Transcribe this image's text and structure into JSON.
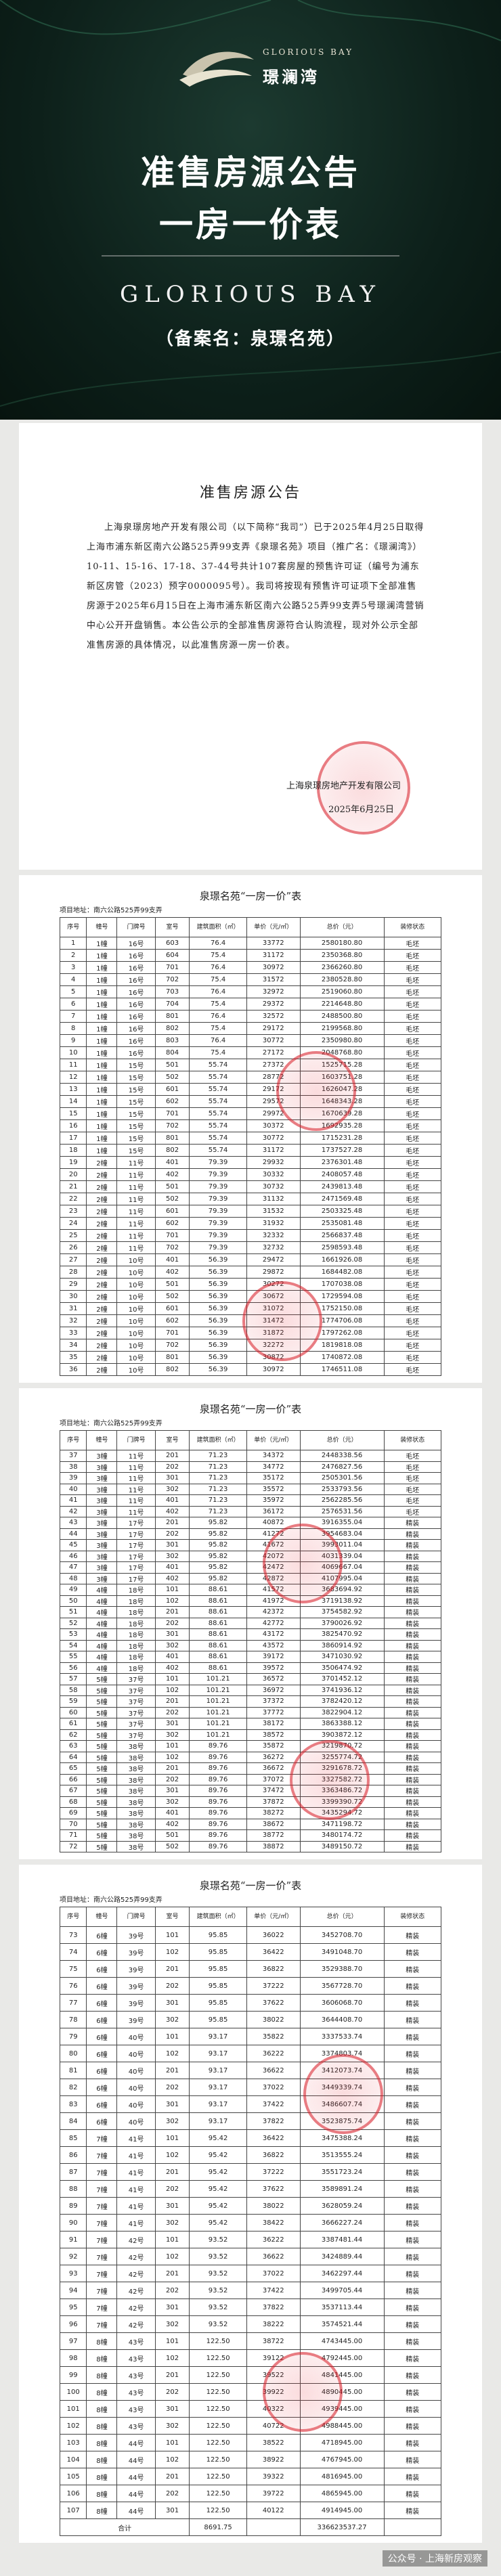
{
  "banner": {
    "logo_en": "GLORIOUS BAY",
    "logo_cn": "璟澜湾",
    "title_line1": "准售房源公告",
    "title_line2": "一房一价表",
    "brand": "GLORIOUS BAY",
    "record_name": "（备案名：泉璟名苑）"
  },
  "notice": {
    "title": "准售房源公告",
    "body": "上海泉璟房地产开发有限公司（以下简称“我司”）已于2025年4月25日取得上海市浦东新区南六公路525弄99支弄《泉璟名苑》项目（推广名：《璟澜湾》）10-11、15-16、17-18、37-44号共计107套房屋的预售许可证（编号为浦东新区房管（2023）预字0000095号）。我司将按现有预售许可证项下全部准售房源于2025年6月15日在上海市浦东新区南六公路525弄99支弄5号璟澜湾营销中心公开开盘销售。本公告公示的全部准售房源符合认购流程，现对外公示全部准售房源的具体情况，以此准售房源一房一价表。",
    "company": "上海泉璟房地产开发有限公司",
    "date": "2025年6月25日"
  },
  "tables": [
    {
      "title": "泉璟名苑“一房一价”表",
      "address": "项目地址：南六公路525弄99支弄",
      "columns": [
        "序号",
        "幢号",
        "门牌号",
        "室号",
        "建筑面积（㎡）",
        "单价（元/㎡）",
        "总价（元）",
        "装修状态"
      ],
      "rows": [
        [
          "1",
          "1幢",
          "16号",
          "603",
          "76.4",
          "33772",
          "2580180.80",
          "毛坯"
        ],
        [
          "2",
          "1幢",
          "16号",
          "604",
          "75.4",
          "31172",
          "2350368.80",
          "毛坯"
        ],
        [
          "3",
          "1幢",
          "16号",
          "701",
          "76.4",
          "30972",
          "2366260.80",
          "毛坯"
        ],
        [
          "4",
          "1幢",
          "16号",
          "702",
          "75.4",
          "31572",
          "2380528.80",
          "毛坯"
        ],
        [
          "5",
          "1幢",
          "16号",
          "703",
          "76.4",
          "32972",
          "2519060.80",
          "毛坯"
        ],
        [
          "6",
          "1幢",
          "16号",
          "704",
          "75.4",
          "29372",
          "2214648.80",
          "毛坯"
        ],
        [
          "7",
          "1幢",
          "16号",
          "801",
          "76.4",
          "32572",
          "2488500.80",
          "毛坯"
        ],
        [
          "8",
          "1幢",
          "16号",
          "802",
          "75.4",
          "29172",
          "2199568.80",
          "毛坯"
        ],
        [
          "9",
          "1幢",
          "16号",
          "803",
          "76.4",
          "30772",
          "2350980.80",
          "毛坯"
        ],
        [
          "10",
          "1幢",
          "16号",
          "804",
          "75.4",
          "27172",
          "2048768.80",
          "毛坯"
        ],
        [
          "11",
          "1幢",
          "15号",
          "501",
          "55.74",
          "27372",
          "1525715.28",
          "毛坯"
        ],
        [
          "12",
          "1幢",
          "15号",
          "502",
          "55.74",
          "28772",
          "1603751.28",
          "毛坯"
        ],
        [
          "13",
          "1幢",
          "15号",
          "601",
          "55.74",
          "29172",
          "1626047.28",
          "毛坯"
        ],
        [
          "14",
          "1幢",
          "15号",
          "602",
          "55.74",
          "29572",
          "1648343.28",
          "毛坯"
        ],
        [
          "15",
          "1幢",
          "15号",
          "701",
          "55.74",
          "29972",
          "1670639.28",
          "毛坯"
        ],
        [
          "16",
          "1幢",
          "15号",
          "702",
          "55.74",
          "30372",
          "1692935.28",
          "毛坯"
        ],
        [
          "17",
          "1幢",
          "15号",
          "801",
          "55.74",
          "30772",
          "1715231.28",
          "毛坯"
        ],
        [
          "18",
          "1幢",
          "15号",
          "802",
          "55.74",
          "31172",
          "1737527.28",
          "毛坯"
        ],
        [
          "19",
          "2幢",
          "11号",
          "401",
          "79.39",
          "29932",
          "2376301.48",
          "毛坯"
        ],
        [
          "20",
          "2幢",
          "11号",
          "402",
          "79.39",
          "30332",
          "2408057.48",
          "毛坯"
        ],
        [
          "21",
          "2幢",
          "11号",
          "501",
          "79.39",
          "30732",
          "2439813.48",
          "毛坯"
        ],
        [
          "22",
          "2幢",
          "11号",
          "502",
          "79.39",
          "31132",
          "2471569.48",
          "毛坯"
        ],
        [
          "23",
          "2幢",
          "11号",
          "601",
          "79.39",
          "31532",
          "2503325.48",
          "毛坯"
        ],
        [
          "24",
          "2幢",
          "11号",
          "602",
          "79.39",
          "31932",
          "2535081.48",
          "毛坯"
        ],
        [
          "25",
          "2幢",
          "11号",
          "701",
          "79.39",
          "32332",
          "2566837.48",
          "毛坯"
        ],
        [
          "26",
          "2幢",
          "11号",
          "702",
          "79.39",
          "32732",
          "2598593.48",
          "毛坯"
        ],
        [
          "27",
          "2幢",
          "10号",
          "401",
          "56.39",
          "29472",
          "1661926.08",
          "毛坯"
        ],
        [
          "28",
          "2幢",
          "10号",
          "402",
          "56.39",
          "29872",
          "1684482.08",
          "毛坯"
        ],
        [
          "29",
          "2幢",
          "10号",
          "501",
          "56.39",
          "30272",
          "1707038.08",
          "毛坯"
        ],
        [
          "30",
          "2幢",
          "10号",
          "502",
          "56.39",
          "30672",
          "1729594.08",
          "毛坯"
        ],
        [
          "31",
          "2幢",
          "10号",
          "601",
          "56.39",
          "31072",
          "1752150.08",
          "毛坯"
        ],
        [
          "32",
          "2幢",
          "10号",
          "602",
          "56.39",
          "31472",
          "1774706.08",
          "毛坯"
        ],
        [
          "33",
          "2幢",
          "10号",
          "701",
          "56.39",
          "31872",
          "1797262.08",
          "毛坯"
        ],
        [
          "34",
          "2幢",
          "10号",
          "702",
          "56.39",
          "32272",
          "1819818.08",
          "毛坯"
        ],
        [
          "35",
          "2幢",
          "10号",
          "801",
          "56.39",
          "30872",
          "1740872.08",
          "毛坯"
        ],
        [
          "36",
          "2幢",
          "10号",
          "802",
          "56.39",
          "30972",
          "1746511.08",
          "毛坯"
        ]
      ]
    },
    {
      "title": "泉璟名苑“一房一价”表",
      "address": "项目地址：南六公路525弄99支弄",
      "columns": [
        "序号",
        "幢号",
        "门牌号",
        "室号",
        "建筑面积（㎡）",
        "单价（元/㎡）",
        "总价（元）",
        "装修状态"
      ],
      "rows": [
        [
          "37",
          "3幢",
          "11号",
          "201",
          "71.23",
          "34372",
          "2448338.56",
          "毛坯"
        ],
        [
          "38",
          "3幢",
          "11号",
          "202",
          "71.23",
          "34772",
          "2476827.56",
          "毛坯"
        ],
        [
          "39",
          "3幢",
          "11号",
          "301",
          "71.23",
          "35172",
          "2505301.56",
          "毛坯"
        ],
        [
          "40",
          "3幢",
          "11号",
          "302",
          "71.23",
          "35572",
          "2533793.56",
          "毛坯"
        ],
        [
          "41",
          "3幢",
          "11号",
          "401",
          "71.23",
          "35972",
          "2562285.56",
          "毛坯"
        ],
        [
          "42",
          "3幢",
          "11号",
          "402",
          "71.23",
          "36172",
          "2576531.56",
          "毛坯"
        ],
        [
          "43",
          "3幢",
          "17号",
          "201",
          "95.82",
          "40872",
          "3916355.04",
          "精装"
        ],
        [
          "44",
          "3幢",
          "17号",
          "202",
          "95.82",
          "41272",
          "3954683.04",
          "精装"
        ],
        [
          "45",
          "3幢",
          "17号",
          "301",
          "95.82",
          "41672",
          "3993011.04",
          "精装"
        ],
        [
          "46",
          "3幢",
          "17号",
          "302",
          "95.82",
          "42072",
          "4031339.04",
          "精装"
        ],
        [
          "47",
          "3幢",
          "17号",
          "401",
          "95.82",
          "42472",
          "4069667.04",
          "精装"
        ],
        [
          "48",
          "3幢",
          "17号",
          "402",
          "95.82",
          "42872",
          "4107995.04",
          "精装"
        ],
        [
          "49",
          "4幢",
          "18号",
          "101",
          "88.61",
          "41572",
          "3683694.92",
          "精装"
        ],
        [
          "50",
          "4幢",
          "18号",
          "102",
          "88.61",
          "41972",
          "3719138.92",
          "精装"
        ],
        [
          "51",
          "4幢",
          "18号",
          "201",
          "88.61",
          "42372",
          "3754582.92",
          "精装"
        ],
        [
          "52",
          "4幢",
          "18号",
          "202",
          "88.61",
          "42772",
          "3790026.92",
          "精装"
        ],
        [
          "53",
          "4幢",
          "18号",
          "301",
          "88.61",
          "43172",
          "3825470.92",
          "精装"
        ],
        [
          "54",
          "4幢",
          "18号",
          "302",
          "88.61",
          "43572",
          "3860914.92",
          "精装"
        ],
        [
          "55",
          "4幢",
          "18号",
          "401",
          "88.61",
          "39172",
          "3471030.92",
          "精装"
        ],
        [
          "56",
          "4幢",
          "18号",
          "402",
          "88.61",
          "39572",
          "3506474.92",
          "精装"
        ],
        [
          "57",
          "5幢",
          "37号",
          "101",
          "101.21",
          "36572",
          "3701452.12",
          "精装"
        ],
        [
          "58",
          "5幢",
          "37号",
          "102",
          "101.21",
          "36972",
          "3741936.12",
          "精装"
        ],
        [
          "59",
          "5幢",
          "37号",
          "201",
          "101.21",
          "37372",
          "3782420.12",
          "精装"
        ],
        [
          "60",
          "5幢",
          "37号",
          "202",
          "101.21",
          "37772",
          "3822904.12",
          "精装"
        ],
        [
          "61",
          "5幢",
          "37号",
          "301",
          "101.21",
          "38172",
          "3863388.12",
          "精装"
        ],
        [
          "62",
          "5幢",
          "37号",
          "302",
          "101.21",
          "38572",
          "3903872.12",
          "精装"
        ],
        [
          "63",
          "5幢",
          "38号",
          "101",
          "89.76",
          "35872",
          "3219870.72",
          "精装"
        ],
        [
          "64",
          "5幢",
          "38号",
          "102",
          "89.76",
          "36272",
          "3255774.72",
          "精装"
        ],
        [
          "65",
          "5幢",
          "38号",
          "201",
          "89.76",
          "36672",
          "3291678.72",
          "精装"
        ],
        [
          "66",
          "5幢",
          "38号",
          "202",
          "89.76",
          "37072",
          "3327582.72",
          "精装"
        ],
        [
          "67",
          "5幢",
          "38号",
          "301",
          "89.76",
          "37472",
          "3363486.72",
          "精装"
        ],
        [
          "68",
          "5幢",
          "38号",
          "302",
          "89.76",
          "37872",
          "3399390.72",
          "精装"
        ],
        [
          "69",
          "5幢",
          "38号",
          "401",
          "89.76",
          "38272",
          "3435294.72",
          "精装"
        ],
        [
          "70",
          "5幢",
          "38号",
          "402",
          "89.76",
          "38672",
          "3471198.72",
          "精装"
        ],
        [
          "71",
          "5幢",
          "38号",
          "501",
          "89.76",
          "38772",
          "3480174.72",
          "精装"
        ],
        [
          "72",
          "5幢",
          "38号",
          "502",
          "89.76",
          "38872",
          "3489150.72",
          "精装"
        ]
      ]
    },
    {
      "title": "泉璟名苑“一房一价”表",
      "address": "项目地址：南六公路525弄99支弄",
      "columns": [
        "序号",
        "幢号",
        "门牌号",
        "室号",
        "建筑面积（㎡）",
        "单价（元/㎡）",
        "总价（元）",
        "装修状态"
      ],
      "rows": [
        [
          "73",
          "6幢",
          "39号",
          "101",
          "95.85",
          "36022",
          "3452708.70",
          "精装"
        ],
        [
          "74",
          "6幢",
          "39号",
          "102",
          "95.85",
          "36422",
          "3491048.70",
          "精装"
        ],
        [
          "75",
          "6幢",
          "39号",
          "201",
          "95.85",
          "36822",
          "3529388.70",
          "精装"
        ],
        [
          "76",
          "6幢",
          "39号",
          "202",
          "95.85",
          "37222",
          "3567728.70",
          "精装"
        ],
        [
          "77",
          "6幢",
          "39号",
          "301",
          "95.85",
          "37622",
          "3606068.70",
          "精装"
        ],
        [
          "78",
          "6幢",
          "39号",
          "302",
          "95.85",
          "38022",
          "3644408.70",
          "精装"
        ],
        [
          "79",
          "6幢",
          "40号",
          "101",
          "93.17",
          "35822",
          "3337533.74",
          "精装"
        ],
        [
          "80",
          "6幢",
          "40号",
          "102",
          "93.17",
          "36222",
          "3374803.74",
          "精装"
        ],
        [
          "81",
          "6幢",
          "40号",
          "201",
          "93.17",
          "36622",
          "3412073.74",
          "精装"
        ],
        [
          "82",
          "6幢",
          "40号",
          "202",
          "93.17",
          "37022",
          "3449339.74",
          "精装"
        ],
        [
          "83",
          "6幢",
          "40号",
          "301",
          "93.17",
          "37422",
          "3486607.74",
          "精装"
        ],
        [
          "84",
          "6幢",
          "40号",
          "302",
          "93.17",
          "37822",
          "3523875.74",
          "精装"
        ],
        [
          "85",
          "7幢",
          "41号",
          "101",
          "95.42",
          "36422",
          "3475388.24",
          "精装"
        ],
        [
          "86",
          "7幢",
          "41号",
          "102",
          "95.42",
          "36822",
          "3513555.24",
          "精装"
        ],
        [
          "87",
          "7幢",
          "41号",
          "201",
          "95.42",
          "37222",
          "3551723.24",
          "精装"
        ],
        [
          "88",
          "7幢",
          "41号",
          "202",
          "95.42",
          "37622",
          "3589891.24",
          "精装"
        ],
        [
          "89",
          "7幢",
          "41号",
          "301",
          "95.42",
          "38022",
          "3628059.24",
          "精装"
        ],
        [
          "90",
          "7幢",
          "41号",
          "302",
          "95.42",
          "38422",
          "3666227.24",
          "精装"
        ],
        [
          "91",
          "7幢",
          "42号",
          "101",
          "93.52",
          "36222",
          "3387481.44",
          "精装"
        ],
        [
          "92",
          "7幢",
          "42号",
          "102",
          "93.52",
          "36622",
          "3424889.44",
          "精装"
        ],
        [
          "93",
          "7幢",
          "42号",
          "201",
          "93.52",
          "37022",
          "3462297.44",
          "精装"
        ],
        [
          "94",
          "7幢",
          "42号",
          "202",
          "93.52",
          "37422",
          "3499705.44",
          "精装"
        ],
        [
          "95",
          "7幢",
          "42号",
          "301",
          "93.52",
          "37822",
          "3537113.44",
          "精装"
        ],
        [
          "96",
          "7幢",
          "42号",
          "302",
          "93.52",
          "38222",
          "3574521.44",
          "精装"
        ],
        [
          "97",
          "8幢",
          "43号",
          "101",
          "122.50",
          "38722",
          "4743445.00",
          "精装"
        ],
        [
          "98",
          "8幢",
          "43号",
          "102",
          "122.50",
          "39122",
          "4792445.00",
          "精装"
        ],
        [
          "99",
          "8幢",
          "43号",
          "201",
          "122.50",
          "39522",
          "4841445.00",
          "精装"
        ],
        [
          "100",
          "8幢",
          "43号",
          "202",
          "122.50",
          "39922",
          "4890445.00",
          "精装"
        ],
        [
          "101",
          "8幢",
          "43号",
          "301",
          "122.50",
          "40322",
          "4939445.00",
          "精装"
        ],
        [
          "102",
          "8幢",
          "43号",
          "302",
          "122.50",
          "40722",
          "4988445.00",
          "精装"
        ],
        [
          "103",
          "8幢",
          "44号",
          "101",
          "122.50",
          "38522",
          "4718945.00",
          "精装"
        ],
        [
          "104",
          "8幢",
          "44号",
          "102",
          "122.50",
          "38922",
          "4767945.00",
          "精装"
        ],
        [
          "105",
          "8幢",
          "44号",
          "201",
          "122.50",
          "39322",
          "4816945.00",
          "精装"
        ],
        [
          "106",
          "8幢",
          "44号",
          "202",
          "122.50",
          "39722",
          "4865945.00",
          "精装"
        ],
        [
          "107",
          "8幢",
          "44号",
          "301",
          "122.50",
          "40122",
          "4914945.00",
          "精装"
        ]
      ],
      "total": {
        "label": "合计",
        "area": "8691.75",
        "amount": "336623537.27"
      }
    }
  ],
  "watermark": "公众号 · 上海新房观察"
}
